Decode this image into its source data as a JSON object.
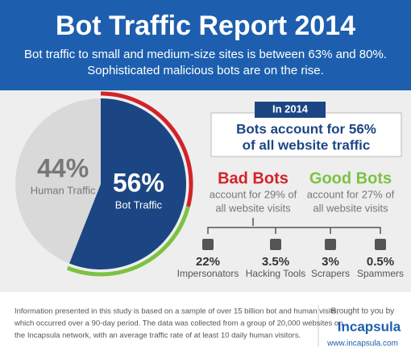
{
  "header": {
    "title": "Bot Traffic Report 2014",
    "subtitle": [
      "Bot traffic to small and medium-size sites is between 63% and 80%.",
      "Sophisticated malicious bots are on the rise."
    ]
  },
  "chart_data": {
    "type": "pie",
    "categories": [
      "Bot Traffic",
      "Human Traffic"
    ],
    "values": [
      56,
      44
    ],
    "value_labels": [
      "56%",
      "44%"
    ],
    "colors": [
      "#1b4683",
      "#d9d9d9"
    ]
  },
  "callout": {
    "tag": "In 2014",
    "lines": [
      "Bots account for 56%",
      "of all website traffic"
    ]
  },
  "bad_bots": {
    "title": "Bad Bots",
    "lines": [
      "account for 29% of",
      "all website visits"
    ],
    "value": 29,
    "color": "#d2232a"
  },
  "good_bots": {
    "title": "Good Bots",
    "lines": [
      "account for 27% of",
      "all website visits"
    ],
    "value": 27,
    "color": "#7cc242"
  },
  "breakdown": [
    {
      "value_label": "22%",
      "label": "Impersonators"
    },
    {
      "value_label": "3.5%",
      "label": "Hacking Tools"
    },
    {
      "value_label": "3%",
      "label": "Scrapers"
    },
    {
      "value_label": "0.5%",
      "label": "Spammers"
    }
  ],
  "footer": {
    "lines": [
      "Information presented in this study is based on a sample of over 15 billion bot and human visits,",
      "which occurred over a 90-day period. The data was collected from a group of 20,000 websites on",
      "the Incapsula network, with an average traffic rate of at least 10 daily human visitors."
    ],
    "brought": "Brought to you by",
    "brand": "Incapsula",
    "url": "www.incapsula.com"
  }
}
